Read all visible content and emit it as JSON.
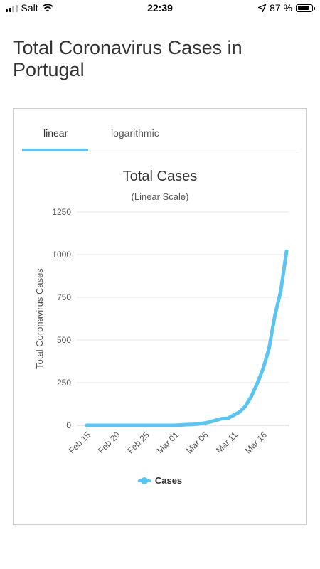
{
  "status_bar": {
    "carrier": "Salt",
    "time": "22:39",
    "battery": "87 %",
    "battery_level": 0.87
  },
  "page": {
    "title": "Total Coronavirus Cases in Portugal"
  },
  "tabs": [
    {
      "label": "linear",
      "active": true
    },
    {
      "label": "logarithmic",
      "active": false
    }
  ],
  "colors": {
    "accent": "#5bc4f1",
    "text": "#333333"
  },
  "chart_data": {
    "type": "line",
    "title": "Total Cases",
    "subtitle": "(Linear Scale)",
    "ylabel": "Total Coronavirus Cases",
    "xlabel": "",
    "ylim": [
      0,
      1250
    ],
    "yticks": [
      0,
      250,
      500,
      750,
      1000,
      1250
    ],
    "grid": true,
    "legend": "bottom",
    "x_tick_labels": [
      "Feb 15",
      "Feb 20",
      "Feb 25",
      "Mar 01",
      "Mar 06",
      "Mar 11",
      "Mar 16"
    ],
    "x": [
      "Feb 15",
      "Feb 16",
      "Feb 17",
      "Feb 18",
      "Feb 19",
      "Feb 20",
      "Feb 21",
      "Feb 22",
      "Feb 23",
      "Feb 24",
      "Feb 25",
      "Feb 26",
      "Feb 27",
      "Feb 28",
      "Feb 29",
      "Mar 01",
      "Mar 02",
      "Mar 03",
      "Mar 04",
      "Mar 05",
      "Mar 06",
      "Mar 07",
      "Mar 08",
      "Mar 09",
      "Mar 10",
      "Mar 11",
      "Mar 12",
      "Mar 13",
      "Mar 14",
      "Mar 15",
      "Mar 16",
      "Mar 17",
      "Mar 18",
      "Mar 19",
      "Mar 20"
    ],
    "series": [
      {
        "name": "Cases",
        "values": [
          0,
          0,
          0,
          0,
          0,
          0,
          0,
          0,
          0,
          0,
          0,
          0,
          0,
          0,
          0,
          0,
          2,
          4,
          5,
          8,
          13,
          20,
          30,
          39,
          41,
          59,
          78,
          112,
          169,
          245,
          331,
          448,
          642,
          785,
          1020
        ]
      }
    ]
  }
}
